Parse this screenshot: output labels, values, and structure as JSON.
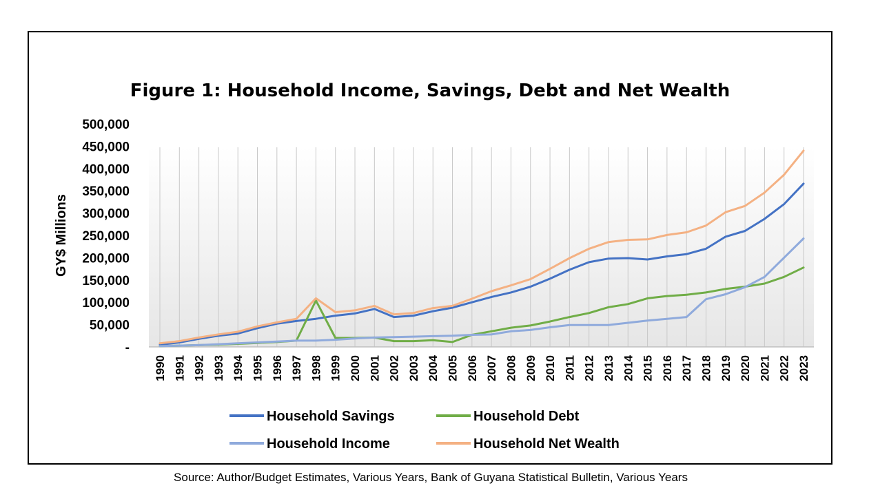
{
  "source_note": "Source: Author/Budget Estimates, Various Years, Bank of Guyana Statistical Bulletin, Various Years",
  "chart_data": {
    "type": "line",
    "title": "Figure 1: Household Income, Savings, Debt and Net Wealth",
    "ylabel": "GY$ Millions",
    "xlabel": "",
    "ylim": [
      0,
      500000
    ],
    "y_ticks": [
      0,
      50000,
      100000,
      150000,
      200000,
      250000,
      300000,
      350000,
      400000,
      450000,
      500000
    ],
    "y_tick_labels": [
      "-",
      "50,000",
      "100,000",
      "150,000",
      "200,000",
      "250,000",
      "300,000",
      "350,000",
      "400,000",
      "450,000",
      "500,000"
    ],
    "grid": "vertical",
    "legend_position": "bottom",
    "categories": [
      "1990",
      "1991",
      "1992",
      "1993",
      "1994",
      "1995",
      "1996",
      "1997",
      "1998",
      "1999",
      "2000",
      "2001",
      "2002",
      "2003",
      "2004",
      "2005",
      "2006",
      "2007",
      "2008",
      "2009",
      "2010",
      "2011",
      "2012",
      "2013",
      "2014",
      "2015",
      "2016",
      "2017",
      "2018",
      "2019",
      "2020",
      "2021",
      "2022",
      "2023"
    ],
    "series": [
      {
        "name": "Household Savings",
        "color": "#4472C4",
        "values": [
          5000,
          10000,
          18000,
          25000,
          30000,
          42000,
          52000,
          58000,
          63000,
          70000,
          75000,
          85000,
          67000,
          70000,
          80000,
          88000,
          100000,
          112000,
          122000,
          135000,
          153000,
          173000,
          190000,
          198000,
          199000,
          196000,
          203000,
          208000,
          220000,
          247000,
          260000,
          287000,
          320000,
          366000
        ]
      },
      {
        "name": "Household Debt",
        "color": "#70AD47",
        "values": [
          2000,
          3000,
          4000,
          5000,
          7000,
          9000,
          11000,
          14000,
          104000,
          20000,
          20000,
          21000,
          13000,
          13000,
          15000,
          11000,
          27000,
          35000,
          43000,
          48000,
          57000,
          67000,
          76000,
          89000,
          96000,
          109000,
          114000,
          117000,
          122000,
          130000,
          135000,
          142000,
          157000,
          178000
        ]
      },
      {
        "name": "Household Income",
        "color": "#8FAADC",
        "values": [
          2000,
          3000,
          4000,
          6000,
          8000,
          10000,
          12000,
          14000,
          14000,
          16000,
          19000,
          21000,
          22000,
          23000,
          24000,
          25000,
          27000,
          28000,
          35000,
          38000,
          44000,
          49000,
          49000,
          49000,
          54000,
          59000,
          63000,
          67000,
          107000,
          118000,
          134000,
          157000,
          200000,
          243000
        ]
      },
      {
        "name": "Household Net Wealth",
        "color": "#F4B183",
        "values": [
          8000,
          13000,
          21000,
          28000,
          34000,
          46000,
          55000,
          63000,
          109000,
          78000,
          82000,
          92000,
          73000,
          76000,
          87000,
          92000,
          108000,
          125000,
          138000,
          152000,
          175000,
          199000,
          220000,
          235000,
          240000,
          241000,
          251000,
          257000,
          272000,
          302000,
          316000,
          346000,
          386000,
          440000
        ]
      }
    ]
  }
}
